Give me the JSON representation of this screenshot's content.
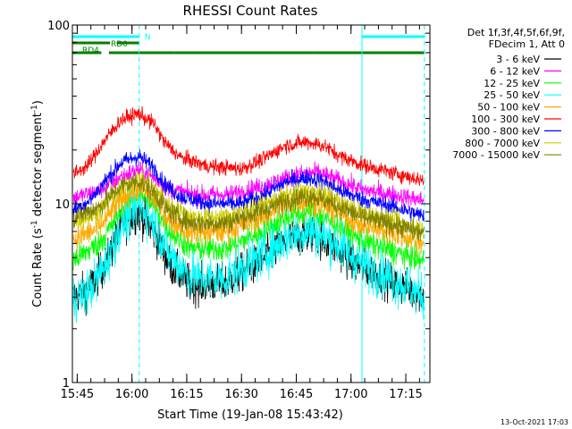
{
  "chart_data": {
    "type": "line",
    "title": "RHESSI Count Rates",
    "xlabel": "Start Time (19-Jan-08 15:43:42)",
    "ylabel_main": "Count Rate (s",
    "ylabel_sup": "-1",
    "ylabel_tail": " detector segment",
    "ylabel_end": ")",
    "yscale": "log",
    "ylim": [
      1,
      100
    ],
    "y_ticks": [
      {
        "value": 1,
        "label": "1"
      },
      {
        "value": 10,
        "label": "10"
      },
      {
        "value": 100,
        "label": "100"
      }
    ],
    "xlim": [
      15.728,
      17.36
    ],
    "x_ticks": [
      {
        "value": 15.75,
        "label": "15:45"
      },
      {
        "value": 16.0,
        "label": "16:00"
      },
      {
        "value": 16.25,
        "label": "16:15"
      },
      {
        "value": 16.5,
        "label": "16:30"
      },
      {
        "value": 16.75,
        "label": "16:45"
      },
      {
        "value": 17.0,
        "label": "17:00"
      },
      {
        "value": 17.25,
        "label": "17:15"
      }
    ],
    "legend_placement": "outside-right",
    "legend_header": [
      "Det 1f,3f,4f,5f,6f,9f,",
      "FDecim 1, Att 0"
    ],
    "series": [
      {
        "name": "3 - 6 keV",
        "color": "#000000",
        "noise": 0.25,
        "profile": [
          [
            15.73,
            3.0
          ],
          [
            15.8,
            3.3
          ],
          [
            15.88,
            4.6
          ],
          [
            15.95,
            7.5
          ],
          [
            16.03,
            9.0
          ],
          [
            16.1,
            7.0
          ],
          [
            16.17,
            4.6
          ],
          [
            16.27,
            3.5
          ],
          [
            16.42,
            3.6
          ],
          [
            16.58,
            4.7
          ],
          [
            16.72,
            6.3
          ],
          [
            16.82,
            6.8
          ],
          [
            16.9,
            6.0
          ],
          [
            17.02,
            4.6
          ],
          [
            17.2,
            3.6
          ],
          [
            17.32,
            3.1
          ]
        ]
      },
      {
        "name": "6 - 12 keV",
        "color": "#ff00ff",
        "noise": 0.12,
        "profile": [
          [
            15.73,
            10.8
          ],
          [
            15.85,
            11.8
          ],
          [
            15.95,
            14.2
          ],
          [
            16.03,
            15.5
          ],
          [
            16.1,
            14.0
          ],
          [
            16.17,
            12.0
          ],
          [
            16.3,
            11.2
          ],
          [
            16.45,
            11.3
          ],
          [
            16.6,
            12.6
          ],
          [
            16.75,
            14.6
          ],
          [
            16.85,
            15.0
          ],
          [
            16.95,
            13.4
          ],
          [
            17.05,
            12.0
          ],
          [
            17.2,
            11.2
          ],
          [
            17.32,
            10.5
          ]
        ]
      },
      {
        "name": "12 - 25 keV",
        "color": "#00ff00",
        "noise": 0.17,
        "profile": [
          [
            15.73,
            4.8
          ],
          [
            15.85,
            6.0
          ],
          [
            15.95,
            9.0
          ],
          [
            16.03,
            11.5
          ],
          [
            16.1,
            9.8
          ],
          [
            16.17,
            7.0
          ],
          [
            16.27,
            5.6
          ],
          [
            16.42,
            5.6
          ],
          [
            16.58,
            6.8
          ],
          [
            16.72,
            8.6
          ],
          [
            16.82,
            9.0
          ],
          [
            16.92,
            7.8
          ],
          [
            17.05,
            6.2
          ],
          [
            17.2,
            5.4
          ],
          [
            17.32,
            4.8
          ]
        ]
      },
      {
        "name": "25 - 50 keV",
        "color": "#00ffff",
        "noise": 0.3,
        "profile": [
          [
            15.73,
            2.9
          ],
          [
            15.8,
            3.2
          ],
          [
            15.88,
            4.6
          ],
          [
            15.95,
            7.5
          ],
          [
            16.03,
            10.0
          ],
          [
            16.1,
            8.0
          ],
          [
            16.17,
            5.2
          ],
          [
            16.27,
            3.9
          ],
          [
            16.42,
            3.8
          ],
          [
            16.58,
            5.0
          ],
          [
            16.72,
            6.6
          ],
          [
            16.82,
            7.1
          ],
          [
            16.92,
            6.2
          ],
          [
            17.05,
            4.6
          ],
          [
            17.2,
            3.7
          ],
          [
            17.32,
            3.1
          ]
        ]
      },
      {
        "name": "50 - 100 keV",
        "color": "#ffaa00",
        "noise": 0.17,
        "profile": [
          [
            15.73,
            6.3
          ],
          [
            15.85,
            7.3
          ],
          [
            15.95,
            10.5
          ],
          [
            16.03,
            12.5
          ],
          [
            16.1,
            10.8
          ],
          [
            16.17,
            8.2
          ],
          [
            16.27,
            6.9
          ],
          [
            16.42,
            7.0
          ],
          [
            16.58,
            8.3
          ],
          [
            16.72,
            10.0
          ],
          [
            16.82,
            10.5
          ],
          [
            16.92,
            9.2
          ],
          [
            17.05,
            7.6
          ],
          [
            17.2,
            6.8
          ],
          [
            17.32,
            6.1
          ]
        ]
      },
      {
        "name": "100 - 300 keV",
        "color": "#ff0000",
        "noise": 0.1,
        "profile": [
          [
            15.73,
            14.5
          ],
          [
            15.8,
            16.5
          ],
          [
            15.88,
            23.0
          ],
          [
            15.95,
            29.5
          ],
          [
            16.03,
            32.0
          ],
          [
            16.1,
            28.0
          ],
          [
            16.15,
            22.0
          ],
          [
            16.22,
            18.2
          ],
          [
            16.35,
            16.2
          ],
          [
            16.5,
            15.7
          ],
          [
            16.6,
            17.8
          ],
          [
            16.7,
            21.2
          ],
          [
            16.8,
            22.2
          ],
          [
            16.88,
            21.0
          ],
          [
            16.95,
            18.5
          ],
          [
            17.05,
            16.5
          ],
          [
            17.2,
            14.8
          ],
          [
            17.32,
            13.6
          ]
        ]
      },
      {
        "name": "300 - 800 keV",
        "color": "#0000ff",
        "noise": 0.11,
        "profile": [
          [
            15.73,
            9.2
          ],
          [
            15.8,
            10.2
          ],
          [
            15.88,
            13.5
          ],
          [
            15.95,
            17.0
          ],
          [
            16.03,
            18.5
          ],
          [
            16.1,
            16.0
          ],
          [
            16.15,
            12.8
          ],
          [
            16.22,
            11.0
          ],
          [
            16.35,
            10.0
          ],
          [
            16.5,
            10.0
          ],
          [
            16.6,
            11.2
          ],
          [
            16.7,
            13.2
          ],
          [
            16.8,
            14.0
          ],
          [
            16.88,
            13.3
          ],
          [
            16.95,
            11.8
          ],
          [
            17.05,
            10.6
          ],
          [
            17.2,
            9.6
          ],
          [
            17.32,
            8.6
          ]
        ]
      },
      {
        "name": "800 - 7000 keV",
        "color": "#cccc00",
        "noise": 0.13,
        "profile": [
          [
            15.73,
            7.8
          ],
          [
            15.85,
            9.0
          ],
          [
            15.95,
            12.2
          ],
          [
            16.03,
            14.0
          ],
          [
            16.1,
            12.4
          ],
          [
            16.17,
            9.8
          ],
          [
            16.27,
            8.4
          ],
          [
            16.42,
            8.4
          ],
          [
            16.58,
            9.6
          ],
          [
            16.72,
            11.3
          ],
          [
            16.82,
            11.8
          ],
          [
            16.92,
            10.6
          ],
          [
            17.05,
            8.9
          ],
          [
            17.2,
            8.0
          ],
          [
            17.32,
            7.2
          ]
        ]
      },
      {
        "name": "7000 - 15000 keV",
        "color": "#808000",
        "noise": 0.14,
        "profile": [
          [
            15.73,
            8.3
          ],
          [
            15.85,
            9.6
          ],
          [
            15.95,
            12.6
          ],
          [
            16.03,
            13.4
          ],
          [
            16.1,
            11.6
          ],
          [
            16.17,
            9.0
          ],
          [
            16.27,
            7.8
          ],
          [
            16.42,
            7.8
          ],
          [
            16.58,
            9.0
          ],
          [
            16.72,
            10.6
          ],
          [
            16.82,
            11.1
          ],
          [
            16.92,
            10.0
          ],
          [
            17.05,
            8.4
          ],
          [
            17.2,
            7.6
          ],
          [
            17.32,
            6.9
          ]
        ]
      }
    ],
    "vertical_lines": [
      {
        "x": 15.728,
        "style": "solid",
        "color": "#00ffff"
      },
      {
        "x": 16.033,
        "style": "dashed",
        "color": "#00ffff"
      },
      {
        "x": 17.05,
        "style": "solid",
        "color": "#00ffff"
      },
      {
        "x": 17.335,
        "style": "dashed",
        "color": "#00ffff"
      }
    ],
    "flag_bars": [
      {
        "label": "N",
        "color": "#00ffff",
        "row": 1,
        "segments": [
          [
            15.728,
            16.033
          ],
          [
            17.05,
            17.335
          ]
        ]
      },
      {
        "label": "RD0",
        "color": "#008000",
        "row": 2,
        "segments": [
          [
            15.728,
            15.9
          ],
          [
            15.93,
            16.033
          ]
        ]
      },
      {
        "label": "RD4",
        "color": "#008000",
        "row": 3,
        "segments": [
          [
            15.728,
            15.86
          ],
          [
            15.895,
            16.19
          ],
          [
            16.19,
            16.65
          ],
          [
            16.65,
            16.83
          ],
          [
            16.83,
            17.335
          ]
        ]
      }
    ],
    "footer_date": "13-Oct-2021 17:03"
  }
}
